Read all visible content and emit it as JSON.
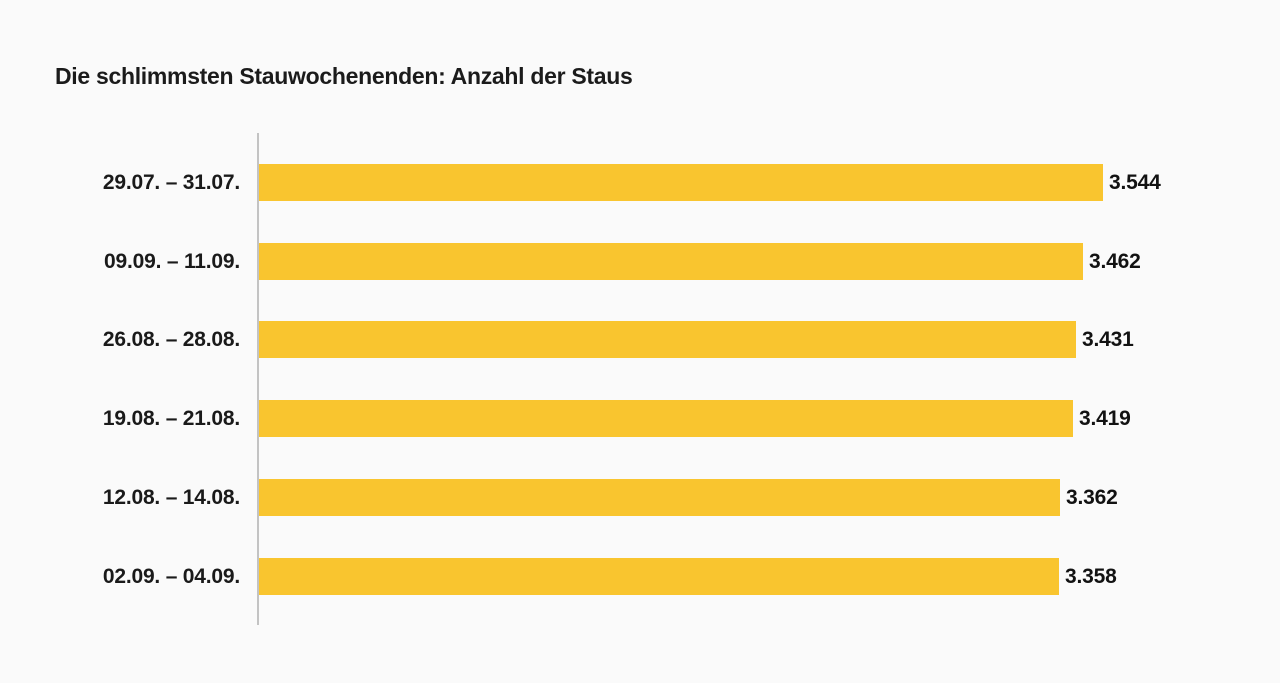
{
  "page": {
    "background": "#fafafa"
  },
  "chart_data": {
    "type": "bar",
    "orientation": "horizontal",
    "title": "Die schlimmsten Stauwochenenden: Anzahl der Staus",
    "categories": [
      "29.07. – 31.07.",
      "09.09. – 11.09.",
      "26.08. – 28.08.",
      "19.08. – 21.08.",
      "12.08. – 14.08.",
      "02.09. – 04.09."
    ],
    "values": [
      3544,
      3462,
      3431,
      3419,
      3362,
      3358
    ],
    "value_labels": [
      "3.544",
      "3.462",
      "3.431",
      "3.419",
      "3.362",
      "3.358"
    ],
    "xlabel": "",
    "ylabel": "",
    "xlim": [
      0,
      3544
    ],
    "grid": false,
    "legend": "none",
    "bar_color": "#f9c52f",
    "axis_line_color": "#c3c3c3",
    "text_color": "#1a1a1a"
  },
  "layout_meta": {
    "note": ""
  }
}
